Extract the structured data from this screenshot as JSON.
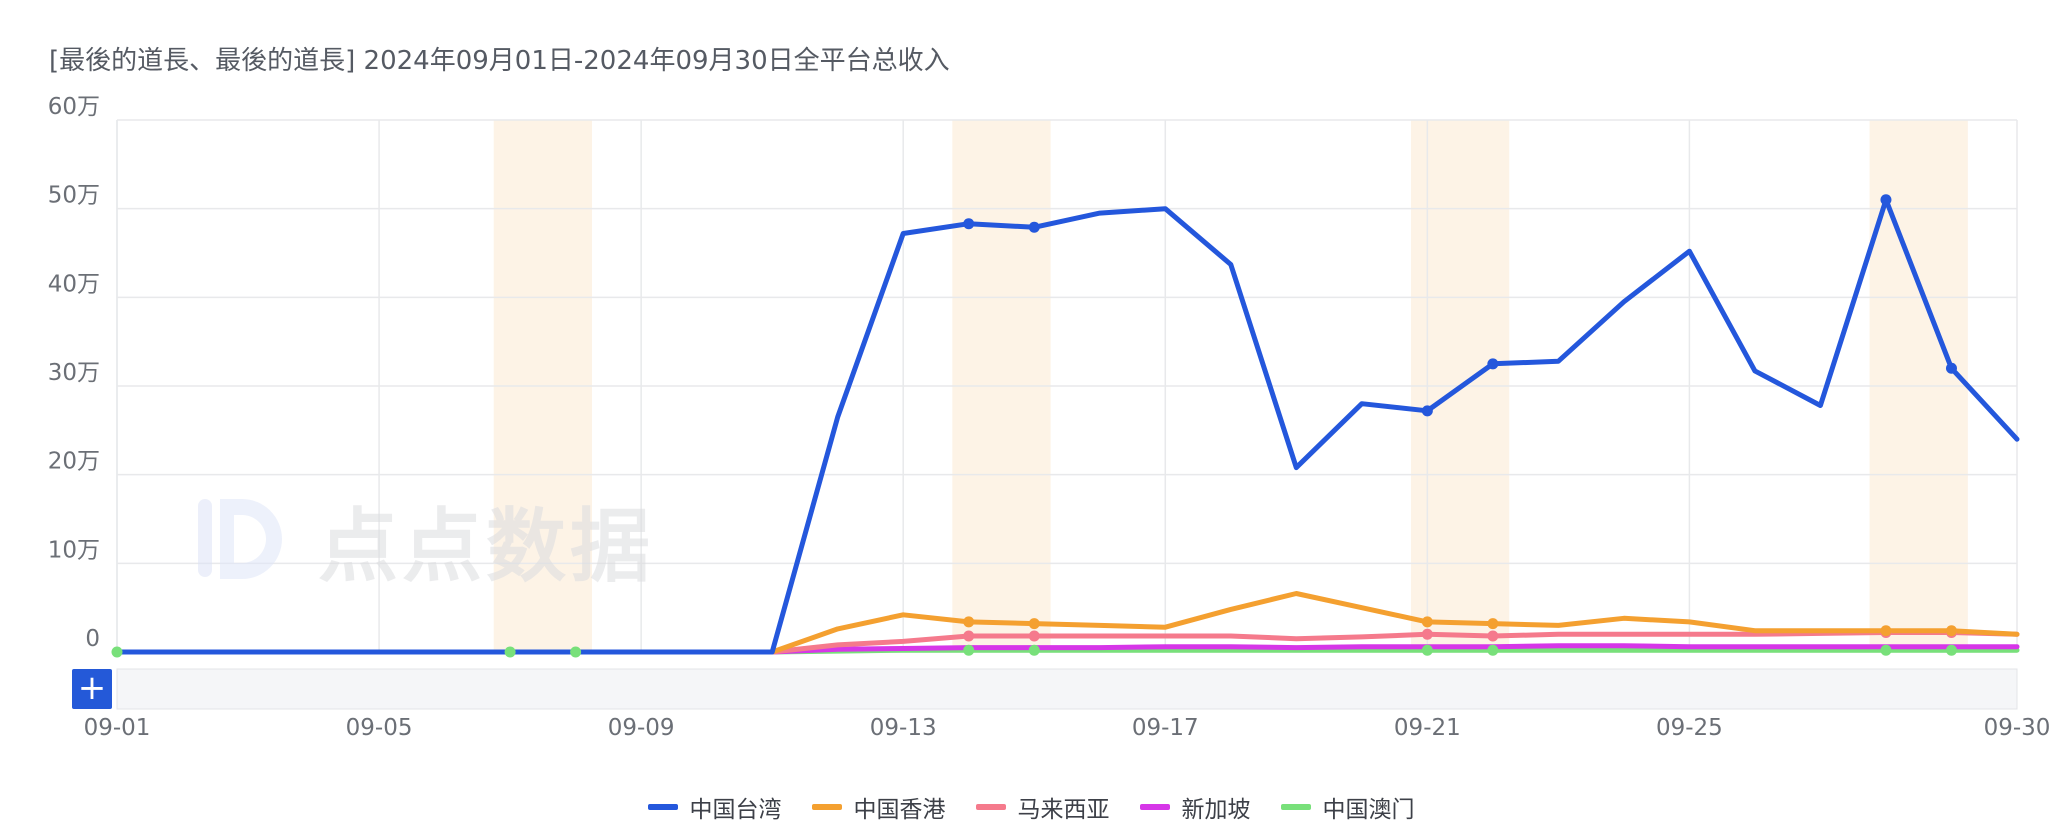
{
  "title": "[最後的道長、最後的道長]  2024年09月01日-2024年09月30日全平台总收入",
  "watermark": {
    "text": "点点数据",
    "icon": "diandian-logo-icon"
  },
  "add_button": {
    "label": "+",
    "icon": "plus-icon"
  },
  "colors": {
    "grid": "#e8e9eb",
    "weekend_band": "#fdf3e6",
    "series": [
      "#2457dc",
      "#f4a030",
      "#f57a8c",
      "#d636e8",
      "#78e07a"
    ]
  },
  "chart_data": {
    "type": "line",
    "title": "",
    "xlabel": "",
    "ylabel": "",
    "x": [
      "09-01",
      "09-02",
      "09-03",
      "09-04",
      "09-05",
      "09-06",
      "09-07",
      "09-08",
      "09-09",
      "09-10",
      "09-11",
      "09-12",
      "09-13",
      "09-14",
      "09-15",
      "09-16",
      "09-17",
      "09-18",
      "09-19",
      "09-20",
      "09-21",
      "09-22",
      "09-23",
      "09-24",
      "09-25",
      "09-26",
      "09-27",
      "09-28",
      "09-29",
      "09-30"
    ],
    "x_tick_labels": [
      "09-01",
      "09-05",
      "09-09",
      "09-13",
      "09-17",
      "09-21",
      "09-25",
      "09-30"
    ],
    "y_tick_labels": [
      "0",
      "10万",
      "20万",
      "30万",
      "40万",
      "50万",
      "60万"
    ],
    "ylim": [
      0,
      600000
    ],
    "grid": true,
    "legend_position": "bottom",
    "weekend_bands": [
      [
        "09-07",
        "09-08"
      ],
      [
        "09-14",
        "09-15"
      ],
      [
        "09-21",
        "09-22"
      ],
      [
        "09-28",
        "09-29"
      ]
    ],
    "series": [
      {
        "name": "中国台湾",
        "values": [
          0,
          0,
          0,
          0,
          0,
          0,
          0,
          0,
          0,
          0,
          0,
          265000,
          472000,
          483000,
          479000,
          495000,
          500000,
          437000,
          208000,
          280000,
          272000,
          325000,
          328000,
          395000,
          452000,
          317000,
          278000,
          510000,
          320000,
          240000
        ],
        "markers": [
          13,
          14,
          20,
          21,
          27,
          28
        ]
      },
      {
        "name": "中国香港",
        "values": [
          0,
          0,
          0,
          0,
          0,
          0,
          0,
          0,
          0,
          0,
          0,
          26000,
          42000,
          34000,
          32000,
          30000,
          28000,
          48000,
          66000,
          50000,
          34000,
          32000,
          30000,
          38000,
          34000,
          24000,
          24000,
          24000,
          24000,
          20000
        ],
        "markers": [
          13,
          14,
          20,
          21,
          27,
          28
        ]
      },
      {
        "name": "马来西亚",
        "values": [
          0,
          0,
          0,
          0,
          0,
          0,
          0,
          0,
          0,
          0,
          0,
          8000,
          12000,
          18000,
          18000,
          18000,
          18000,
          18000,
          15000,
          17000,
          20000,
          18000,
          20000,
          20000,
          20000,
          20000,
          21000,
          22000,
          22000,
          20000
        ],
        "markers": [
          13,
          14,
          20,
          21,
          27,
          28
        ]
      },
      {
        "name": "新加坡",
        "values": [
          0,
          0,
          0,
          0,
          0,
          0,
          0,
          0,
          0,
          0,
          0,
          3000,
          4000,
          5000,
          5000,
          5000,
          6000,
          6000,
          5000,
          6000,
          6000,
          6000,
          7000,
          7000,
          6000,
          6000,
          6000,
          6000,
          6000,
          6000
        ],
        "markers": []
      },
      {
        "name": "中国澳门",
        "values": [
          0,
          0,
          0,
          0,
          0,
          0,
          0,
          0,
          0,
          0,
          0,
          1000,
          2000,
          2000,
          2000,
          2000,
          2000,
          2000,
          2000,
          2000,
          2000,
          2000,
          2000,
          2000,
          2000,
          2000,
          2000,
          2000,
          2000,
          2000
        ],
        "markers": [
          0,
          6,
          7,
          13,
          14,
          20,
          21,
          27,
          28
        ]
      }
    ]
  }
}
